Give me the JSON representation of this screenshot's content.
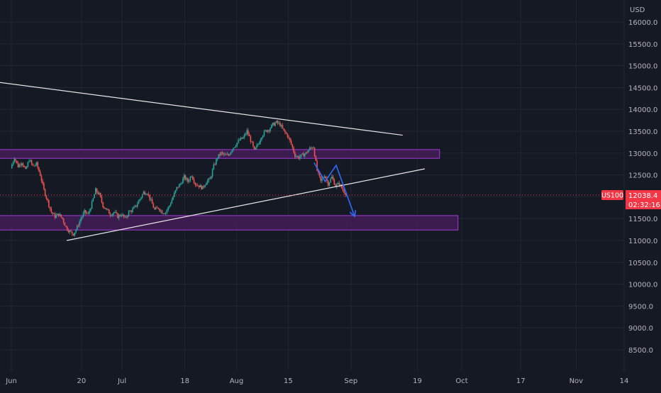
{
  "colors": {
    "background": "#151924",
    "grid": "#232734",
    "candle_up": "#26a69a",
    "candle_down": "#ef5350",
    "zone_fill": "#4a1d5e",
    "zone_border": "#a33bd6",
    "trendline": "#e6e6e6",
    "arrow": "#2f6bff",
    "price_label": "#f23645",
    "axis_text": "#b2b5be"
  },
  "chart_data": {
    "type": "candlestick",
    "symbol": "US100",
    "currency": "USD",
    "last_price": "12038.4",
    "countdown": "02:32:16",
    "y_range": [
      8100,
      16400
    ],
    "y_ticks": [
      "16000.0",
      "15500.0",
      "15000.0",
      "14500.0",
      "14000.0",
      "13500.0",
      "13000.0",
      "12500.0",
      "12000.0",
      "11500.0",
      "11000.0",
      "10500.0",
      "10000.0",
      "9500.0",
      "9000.0",
      "8500.0"
    ],
    "x_range": [
      "2022-06-01",
      "2022-11-14"
    ],
    "x_ticks": [
      {
        "label": "Jun",
        "date": "2022-06-01"
      },
      {
        "label": "20",
        "date": "2022-06-20"
      },
      {
        "label": "Jul",
        "date": "2022-07-01"
      },
      {
        "label": "18",
        "date": "2022-07-18"
      },
      {
        "label": "Aug",
        "date": "2022-08-01"
      },
      {
        "label": "15",
        "date": "2022-08-15"
      },
      {
        "label": "Sep",
        "date": "2022-09-01"
      },
      {
        "label": "19",
        "date": "2022-09-19"
      },
      {
        "label": "Oct",
        "date": "2022-10-01"
      },
      {
        "label": "17",
        "date": "2022-10-17"
      },
      {
        "label": "Nov",
        "date": "2022-11-01"
      },
      {
        "label": "14",
        "date": "2022-11-14"
      }
    ],
    "price_path": [
      [
        "2022-06-01",
        12650
      ],
      [
        "2022-06-02",
        12900
      ],
      [
        "2022-06-03",
        12700
      ],
      [
        "2022-06-04",
        12800
      ],
      [
        "2022-06-05",
        12600
      ],
      [
        "2022-06-06",
        12850
      ],
      [
        "2022-06-07",
        12700
      ],
      [
        "2022-06-08",
        12750
      ],
      [
        "2022-06-09",
        12500
      ],
      [
        "2022-06-10",
        12150
      ],
      [
        "2022-06-11",
        11900
      ],
      [
        "2022-06-12",
        11650
      ],
      [
        "2022-06-13",
        11550
      ],
      [
        "2022-06-14",
        11600
      ],
      [
        "2022-06-15",
        11500
      ],
      [
        "2022-06-16",
        11300
      ],
      [
        "2022-06-17",
        11200
      ],
      [
        "2022-06-18",
        11150
      ],
      [
        "2022-06-19",
        11300
      ],
      [
        "2022-06-20",
        11500
      ],
      [
        "2022-06-21",
        11650
      ],
      [
        "2022-06-22",
        11600
      ],
      [
        "2022-06-23",
        11850
      ],
      [
        "2022-06-24",
        12150
      ],
      [
        "2022-06-25",
        12050
      ],
      [
        "2022-06-26",
        11800
      ],
      [
        "2022-06-27",
        11700
      ],
      [
        "2022-06-28",
        11600
      ],
      [
        "2022-06-29",
        11650
      ],
      [
        "2022-06-30",
        11550
      ],
      [
        "2022-07-01",
        11600
      ],
      [
        "2022-07-02",
        11500
      ],
      [
        "2022-07-03",
        11650
      ],
      [
        "2022-07-04",
        11700
      ],
      [
        "2022-07-05",
        11800
      ],
      [
        "2022-07-06",
        11950
      ],
      [
        "2022-07-07",
        12100
      ],
      [
        "2022-07-08",
        12100
      ],
      [
        "2022-07-09",
        11900
      ],
      [
        "2022-07-10",
        11700
      ],
      [
        "2022-07-11",
        11750
      ],
      [
        "2022-07-12",
        11650
      ],
      [
        "2022-07-13",
        11650
      ],
      [
        "2022-07-14",
        11800
      ],
      [
        "2022-07-15",
        12000
      ],
      [
        "2022-07-16",
        12200
      ],
      [
        "2022-07-17",
        12300
      ],
      [
        "2022-07-18",
        12450
      ],
      [
        "2022-07-19",
        12350
      ],
      [
        "2022-07-20",
        12500
      ],
      [
        "2022-07-21",
        12300
      ],
      [
        "2022-07-22",
        12250
      ],
      [
        "2022-07-23",
        12200
      ],
      [
        "2022-07-24",
        12350
      ],
      [
        "2022-07-25",
        12400
      ],
      [
        "2022-07-26",
        12700
      ],
      [
        "2022-07-27",
        12900
      ],
      [
        "2022-07-28",
        13000
      ],
      [
        "2022-07-29",
        12950
      ],
      [
        "2022-07-30",
        12950
      ],
      [
        "2022-07-31",
        13100
      ],
      [
        "2022-08-01",
        13200
      ],
      [
        "2022-08-02",
        13300
      ],
      [
        "2022-08-03",
        13350
      ],
      [
        "2022-08-04",
        13500
      ],
      [
        "2022-08-05",
        13300
      ],
      [
        "2022-08-06",
        13050
      ],
      [
        "2022-08-07",
        13200
      ],
      [
        "2022-08-08",
        13400
      ],
      [
        "2022-08-09",
        13500
      ],
      [
        "2022-08-10",
        13550
      ],
      [
        "2022-08-11",
        13650
      ],
      [
        "2022-08-12",
        13700
      ],
      [
        "2022-08-13",
        13650
      ],
      [
        "2022-08-14",
        13500
      ],
      [
        "2022-08-15",
        13400
      ],
      [
        "2022-08-16",
        13200
      ],
      [
        "2022-08-17",
        12950
      ],
      [
        "2022-08-18",
        12900
      ],
      [
        "2022-08-19",
        12950
      ],
      [
        "2022-08-20",
        13000
      ],
      [
        "2022-08-21",
        13100
      ],
      [
        "2022-08-22",
        13150
      ],
      [
        "2022-08-23",
        12600
      ],
      [
        "2022-08-24",
        12350
      ],
      [
        "2022-08-25",
        12500
      ],
      [
        "2022-08-26",
        12300
      ],
      [
        "2022-08-27",
        12450
      ],
      [
        "2022-08-28",
        12250
      ],
      [
        "2022-08-29",
        12300
      ],
      [
        "2022-08-30",
        12150
      ],
      [
        "2022-08-31",
        12050
      ]
    ],
    "annotations": {
      "zones": [
        {
          "start": "2022-05-25",
          "end": "2022-09-25",
          "low": 12880,
          "high": 13080
        },
        {
          "start": "2022-05-25",
          "end": "2022-09-30",
          "low": 11240,
          "high": 11570
        }
      ],
      "trendlines": [
        {
          "start": [
            "2022-05-25",
            14660
          ],
          "end": [
            "2022-09-15",
            13410
          ]
        },
        {
          "start": [
            "2022-06-16",
            11000
          ],
          "end": [
            "2022-09-21",
            12640
          ]
        }
      ],
      "projection_arrow": [
        [
          "2022-08-22",
          12780
        ],
        [
          "2022-08-25",
          12350
        ],
        [
          "2022-08-28",
          12720
        ],
        [
          "2022-09-02",
          11550
        ]
      ]
    }
  }
}
